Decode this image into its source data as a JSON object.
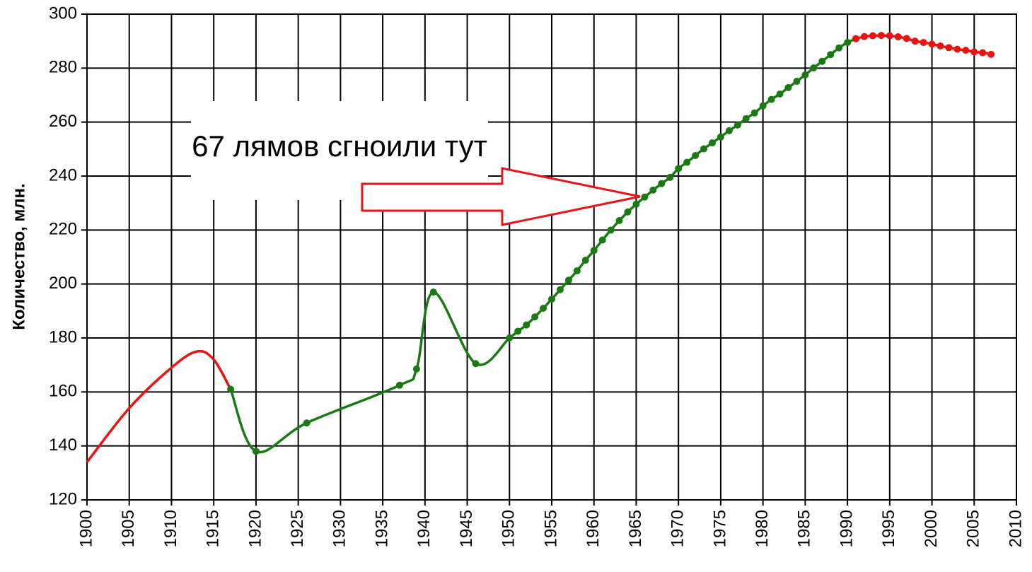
{
  "chart_data": {
    "type": "line",
    "y_label": "Количество, млн.",
    "annotation": "67 лямов сгноили тут",
    "annotation_color": "#e8141c",
    "xlim": [
      1900,
      2010
    ],
    "ylim": [
      120,
      300
    ],
    "xticks": [
      1900,
      1905,
      1910,
      1915,
      1920,
      1925,
      1930,
      1935,
      1940,
      1945,
      1950,
      1955,
      1960,
      1965,
      1970,
      1975,
      1980,
      1985,
      1990,
      1995,
      2000,
      2005,
      2010
    ],
    "yticks": [
      120,
      140,
      160,
      180,
      200,
      220,
      240,
      260,
      280,
      300
    ],
    "grid": true,
    "smooth": true,
    "series": [
      {
        "color": "#ee1111",
        "markers": false,
        "x": [
          1900,
          1905,
          1910,
          1913,
          1915,
          1917
        ],
        "values": [
          134,
          154,
          169,
          175,
          172,
          161
        ]
      },
      {
        "color": "#1a7a12",
        "markers": true,
        "x": [
          1917,
          1920,
          1926,
          1937,
          1939,
          1941,
          1946,
          1950,
          1951,
          1952,
          1953,
          1954,
          1955,
          1956,
          1957,
          1958,
          1959,
          1960,
          1961,
          1962,
          1963,
          1964,
          1965,
          1966,
          1967,
          1968,
          1969,
          1970,
          1971,
          1972,
          1973,
          1974,
          1975,
          1976,
          1977,
          1978,
          1979,
          1980,
          1981,
          1982,
          1983,
          1984,
          1985,
          1986,
          1987,
          1988,
          1989,
          1990,
          1991
        ],
        "values": [
          161,
          138,
          148.5,
          162.5,
          168.5,
          197,
          170.5,
          180,
          182.5,
          184.8,
          187.8,
          191,
          194.4,
          197.9,
          201.4,
          204.9,
          208.8,
          212.4,
          216.3,
          220,
          223.5,
          226.7,
          229.6,
          232.2,
          234.8,
          237.2,
          239.5,
          242.8,
          245.1,
          247.6,
          250.1,
          252.3,
          254.5,
          256.8,
          258.9,
          261.3,
          263.4,
          266,
          268.4,
          270.4,
          272.8,
          275.1,
          277.5,
          280.1,
          282.5,
          285,
          287.5,
          289.5,
          290.9
        ]
      },
      {
        "color": "#ee1111",
        "markers": true,
        "x": [
          1991,
          1992,
          1993,
          1994,
          1995,
          1996,
          1997,
          1998,
          1999,
          2000,
          2001,
          2002,
          2003,
          2004,
          2005,
          2006,
          2007
        ],
        "values": [
          290.9,
          291.7,
          292,
          292.1,
          292,
          291.6,
          291,
          290,
          289.5,
          288.9,
          288.2,
          287.6,
          287,
          286.6,
          286,
          285.7,
          285.1
        ]
      }
    ]
  }
}
